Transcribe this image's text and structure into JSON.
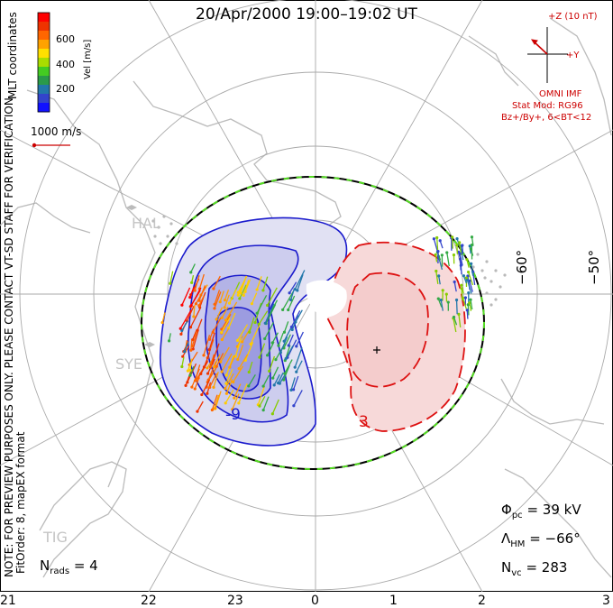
{
  "title": "20/Apr/2000 19:00–19:02 UT",
  "colorbar": {
    "label": "Vel [m/s]",
    "ticks": [
      "600",
      "400",
      "200"
    ],
    "colors": [
      "#ff0000",
      "#ee3300",
      "#ff6600",
      "#ffa200",
      "#ffe000",
      "#aadd00",
      "#44cc22",
      "#2a9a4a",
      "#2277aa",
      "#3344cc",
      "#1111ff"
    ]
  },
  "coordinates": "MLT coordinates",
  "velocity_scale": "1000 m/s",
  "imf": {
    "z_label": "+Z (10 nT)",
    "y_label": "+Y",
    "source": "OMNI IMF",
    "model": "Stat Mod: RG96",
    "condition": "Bz+/By+, 6<BT<12"
  },
  "notice": "NOTE: FOR PREVIEW PURPOSES ONLY. PLEASE CONTACT VT-SD STAFF FOR VERIFICATION.",
  "fit_order": "FitOrder: 8, mapEX format",
  "stations": [
    "HAL",
    "SYE",
    "TIG"
  ],
  "latitude_labels": [
    "−60°",
    "−50°"
  ],
  "contour_labels": [
    "-9",
    "3"
  ],
  "mlt_labels": [
    "21",
    "22",
    "23",
    "0",
    "1",
    "2",
    "3"
  ],
  "stats": {
    "phi_pc": "= 39 kV",
    "lambda_hm": "= −66°",
    "n_vc": "= 283",
    "n_rads": "= 4"
  },
  "colors": {
    "negative_cell": "#0000cc",
    "positive_cell": "#dd1111",
    "hmb": "#000000",
    "hmb_dash": "#55dd22"
  }
}
